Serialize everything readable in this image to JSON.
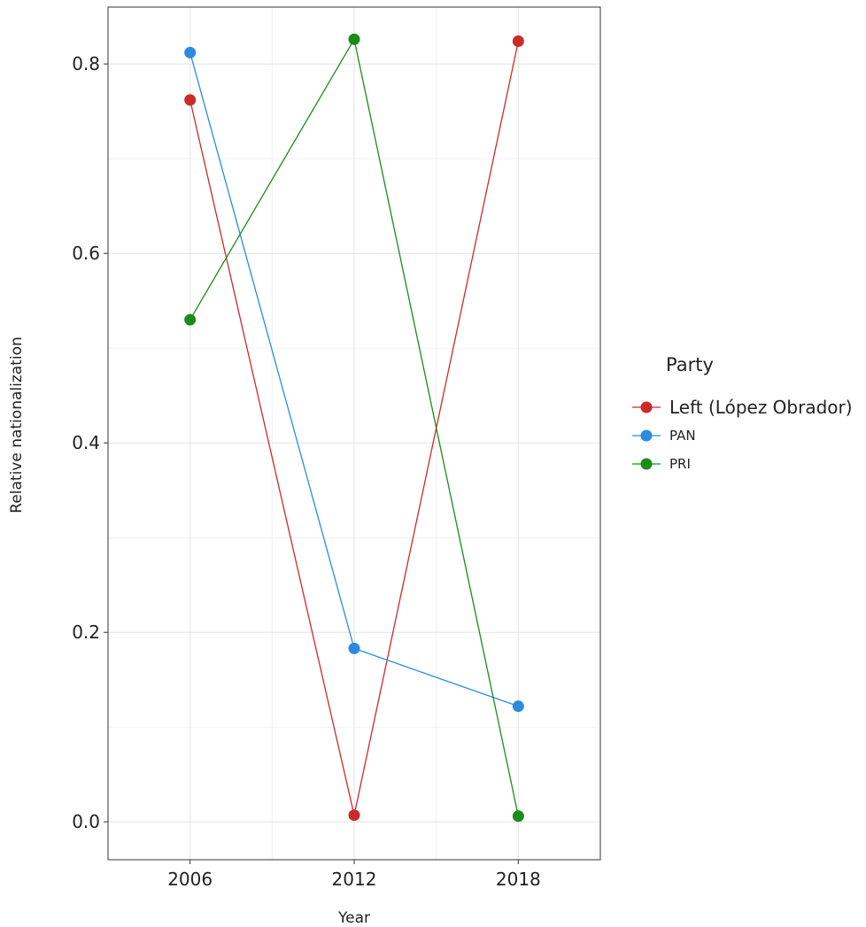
{
  "chart_data": {
    "type": "line",
    "title": "",
    "xlabel": "Year",
    "ylabel": "Relative nationalization",
    "x": [
      2006,
      2012,
      2018
    ],
    "xlim": [
      2003,
      2021
    ],
    "ylim": [
      -0.04,
      0.86
    ],
    "yticks": [
      0.0,
      0.2,
      0.4,
      0.6,
      0.8
    ],
    "ytick_labels": [
      "0.0",
      "0.2",
      "0.4",
      "0.6",
      "0.8"
    ],
    "xtick_labels": [
      "2006",
      "2012",
      "2018"
    ],
    "grid": true,
    "legend": {
      "title": "Party",
      "placement": "right"
    },
    "series": [
      {
        "name": "Left (López Obrador)",
        "color": "#cc2a2a",
        "values": [
          0.762,
          0.007,
          0.824
        ]
      },
      {
        "name": "PAN",
        "color": "#2b8be0",
        "values": [
          0.812,
          0.183,
          0.122
        ]
      },
      {
        "name": "PRI",
        "color": "#1a8c1a",
        "values": [
          0.53,
          0.826,
          0.006
        ]
      }
    ]
  }
}
